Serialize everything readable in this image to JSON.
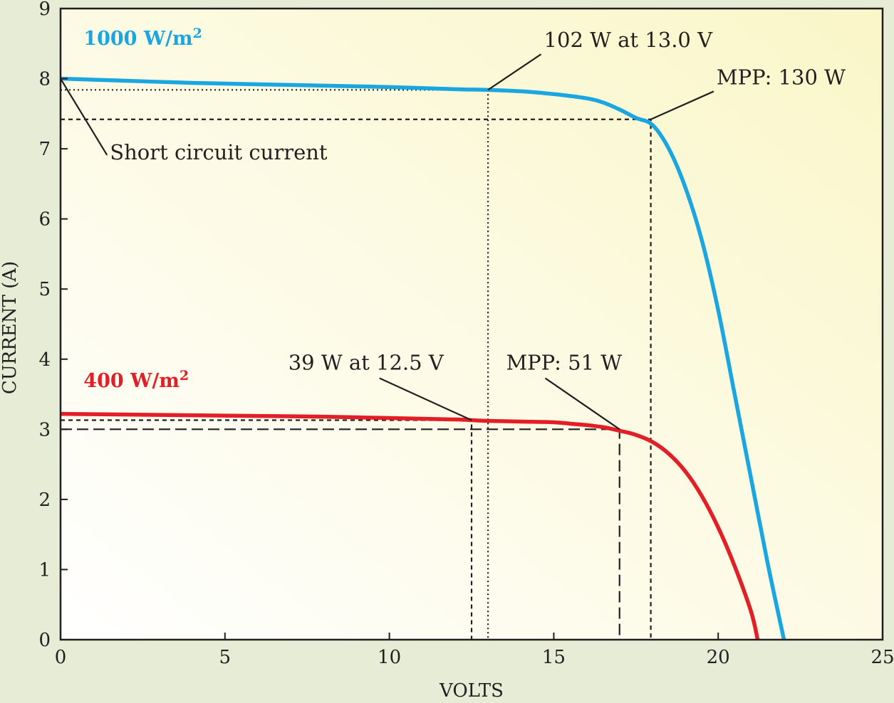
{
  "chart_data": {
    "type": "line",
    "title": "",
    "xlabel": "VOLTS",
    "ylabel": "CURRENT (A)",
    "xlim": [
      0,
      25
    ],
    "ylim": [
      0,
      9
    ],
    "x_ticks": [
      "0",
      "5",
      "10",
      "15",
      "20",
      "25"
    ],
    "y_ticks": [
      "0",
      "1",
      "2",
      "3",
      "4",
      "5",
      "6",
      "7",
      "8",
      "9"
    ],
    "grid": false,
    "background": {
      "from": "#ffffff",
      "to": "#faf6c8"
    },
    "series": [
      {
        "name": "1000 W/m",
        "superscript": "2",
        "color": "#1aa6e0",
        "x": [
          0,
          2,
          4,
          6,
          8,
          10,
          12,
          13,
          14,
          15,
          16,
          16.5,
          17,
          17.5,
          18,
          18.5,
          19,
          19.5,
          20,
          20.5,
          21,
          21.5,
          22
        ],
        "y": [
          8.0,
          7.97,
          7.94,
          7.92,
          7.9,
          7.88,
          7.85,
          7.84,
          7.82,
          7.78,
          7.72,
          7.66,
          7.56,
          7.44,
          7.34,
          7.0,
          6.45,
          5.7,
          4.7,
          3.5,
          2.3,
          1.1,
          0.0
        ]
      },
      {
        "name": "400 W/m",
        "superscript": "2",
        "color": "#e31e26",
        "x": [
          0,
          2,
          4,
          6,
          8,
          10,
          12,
          12.5,
          13,
          14,
          15,
          15.5,
          16,
          16.5,
          17,
          17.5,
          18,
          18.5,
          19,
          19.5,
          20,
          20.5,
          21,
          21.2
        ],
        "y": [
          3.22,
          3.21,
          3.2,
          3.19,
          3.18,
          3.16,
          3.14,
          3.13,
          3.12,
          3.11,
          3.1,
          3.08,
          3.06,
          3.03,
          2.98,
          2.92,
          2.82,
          2.65,
          2.4,
          2.05,
          1.6,
          1.05,
          0.4,
          0.0
        ]
      }
    ],
    "reference_lines": [
      {
        "style": "dotted",
        "x": 13.0,
        "y": 7.84
      },
      {
        "style": "short-dash",
        "x": 17.95,
        "y": 7.42
      },
      {
        "style": "short-dash",
        "x": 12.5,
        "y": 3.13
      },
      {
        "style": "long-dash",
        "x": 17.0,
        "y": 3.0
      }
    ],
    "annotations": [
      {
        "id": "short-circuit",
        "text": "Short circuit current",
        "point": [
          0,
          8.0
        ],
        "label_at": [
          1.5,
          6.85
        ],
        "anchor": "start"
      },
      {
        "id": "point-102w",
        "text": "102 W at 13.0 V",
        "point": [
          13.0,
          7.84
        ],
        "label_at": [
          14.7,
          8.45
        ],
        "anchor": "start"
      },
      {
        "id": "mpp-130w",
        "text": "MPP: 130 W",
        "point": [
          17.95,
          7.42
        ],
        "label_at": [
          19.95,
          7.92
        ],
        "anchor": "start"
      },
      {
        "id": "point-39w",
        "text": "39 W at 12.5 V",
        "point": [
          12.5,
          3.13
        ],
        "label_at": [
          11.65,
          3.85
        ],
        "anchor": "end"
      },
      {
        "id": "mpp-51w",
        "text": "MPP: 51 W",
        "point": [
          17.0,
          3.0
        ],
        "label_at": [
          13.55,
          3.85
        ],
        "anchor": "start"
      }
    ]
  }
}
